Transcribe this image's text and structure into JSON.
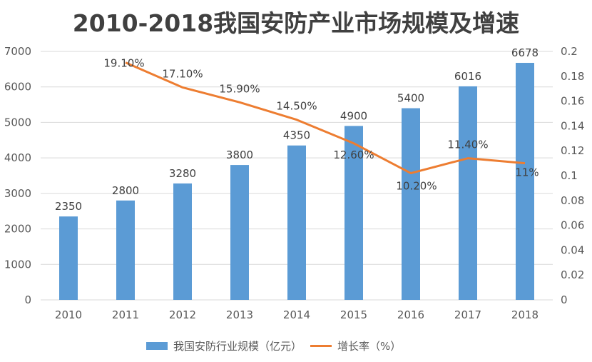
{
  "chart_data": {
    "type": "bar+line",
    "title": "2010-2018我国安防产业市场规模及增速",
    "categories": [
      "2010",
      "2011",
      "2012",
      "2013",
      "2014",
      "2015",
      "2016",
      "2017",
      "2018"
    ],
    "series": [
      {
        "name": "我国安防行业规模（亿元）",
        "type": "bar",
        "axis": "left",
        "color": "#5b9bd5",
        "values": [
          2350,
          2800,
          3280,
          3800,
          4350,
          4900,
          5400,
          6016,
          6678
        ],
        "labels": [
          "2350",
          "2800",
          "3280",
          "3800",
          "4350",
          "4900",
          "5400",
          "6016",
          "6678"
        ]
      },
      {
        "name": "增长率（%）",
        "type": "line",
        "axis": "right",
        "color": "#ed7d31",
        "values": [
          null,
          0.191,
          0.171,
          0.159,
          0.145,
          0.126,
          0.102,
          0.114,
          0.11
        ],
        "labels": [
          "",
          "19.10%",
          "17.10%",
          "15.90%",
          "14.50%",
          "12.60%",
          "10.20%",
          "11.40%",
          "11%"
        ]
      }
    ],
    "y_left": {
      "range": [
        0,
        7000
      ],
      "ticks": [
        "0",
        "1000",
        "2000",
        "3000",
        "4000",
        "5000",
        "6000",
        "7000"
      ]
    },
    "y_right": {
      "range": [
        0,
        0.2
      ],
      "ticks": [
        "0",
        "0.02",
        "0.04",
        "0.06",
        "0.08",
        "0.1",
        "0.12",
        "0.14",
        "0.16",
        "0.18",
        "0.2"
      ]
    },
    "grid": true,
    "legend": "bottom"
  }
}
